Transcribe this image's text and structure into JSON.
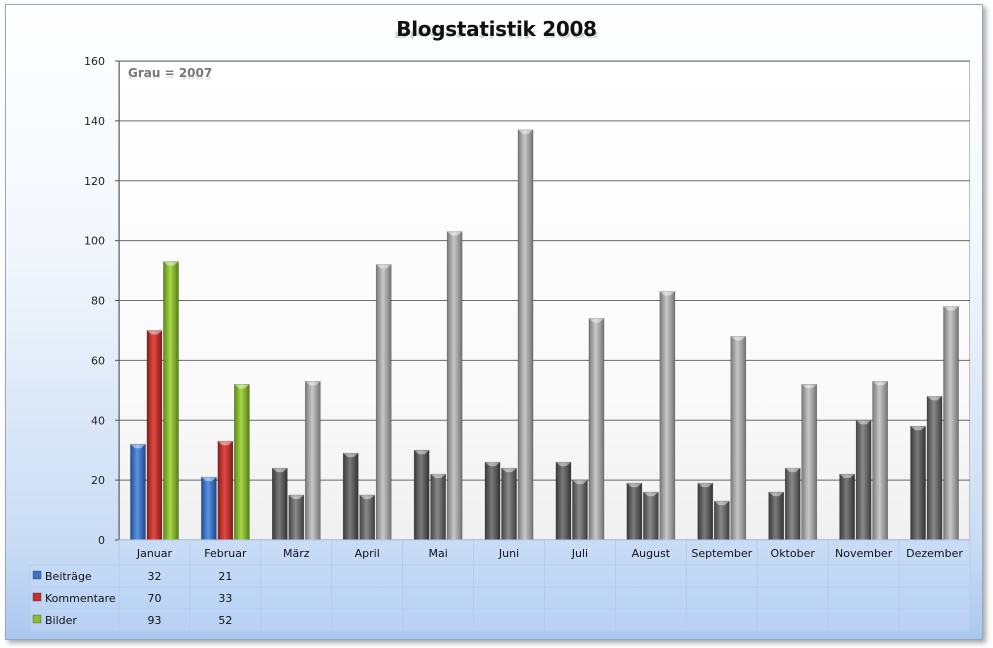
{
  "chart_data": {
    "type": "bar",
    "title": "Blogstatistik 2008",
    "annotation": "Grau = 2007",
    "ylim": [
      0,
      160
    ],
    "yticks": [
      0,
      20,
      40,
      60,
      80,
      100,
      120,
      140,
      160
    ],
    "categories": [
      "Januar",
      "Februar",
      "März",
      "April",
      "Mai",
      "Juni",
      "Juli",
      "August",
      "September",
      "Oktober",
      "November",
      "Dezember"
    ],
    "series": [
      {
        "name": "Beiträge",
        "color": "#3b73c8",
        "values": [
          32,
          21,
          null,
          null,
          null,
          null,
          null,
          null,
          null,
          null,
          null,
          null
        ]
      },
      {
        "name": "Kommentare",
        "color": "#c8302c",
        "values": [
          70,
          33,
          null,
          null,
          null,
          null,
          null,
          null,
          null,
          null,
          null,
          null
        ]
      },
      {
        "name": "Bilder",
        "color": "#8dbb2e",
        "values": [
          93,
          52,
          null,
          null,
          null,
          null,
          null,
          null,
          null,
          null,
          null,
          null
        ]
      }
    ],
    "series_2007": [
      {
        "color": "#5f5f5f",
        "values": [
          33,
          21,
          24,
          29,
          30,
          26,
          26,
          19,
          19,
          16,
          22,
          38
        ]
      },
      {
        "color": "#6e6e6e",
        "values": [
          70,
          33,
          15,
          15,
          22,
          24,
          20,
          16,
          13,
          24,
          40,
          48
        ]
      },
      {
        "color": "#a9a9a9",
        "values": [
          93,
          52,
          53,
          92,
          103,
          137,
          74,
          83,
          68,
          52,
          53,
          78
        ]
      }
    ],
    "table": {
      "rows": [
        {
          "label": "Beiträge",
          "color": "#3b73c8",
          "cells": [
            "32",
            "21",
            "",
            "",
            "",
            "",
            "",
            "",
            "",
            "",
            "",
            ""
          ]
        },
        {
          "label": "Kommentare",
          "color": "#c8302c",
          "cells": [
            "70",
            "33",
            "",
            "",
            "",
            "",
            "",
            "",
            "",
            "",
            "",
            ""
          ]
        },
        {
          "label": "Bilder",
          "color": "#8dbb2e",
          "cells": [
            "93",
            "52",
            "",
            "",
            "",
            "",
            "",
            "",
            "",
            "",
            "",
            ""
          ]
        }
      ]
    },
    "grid": true
  }
}
